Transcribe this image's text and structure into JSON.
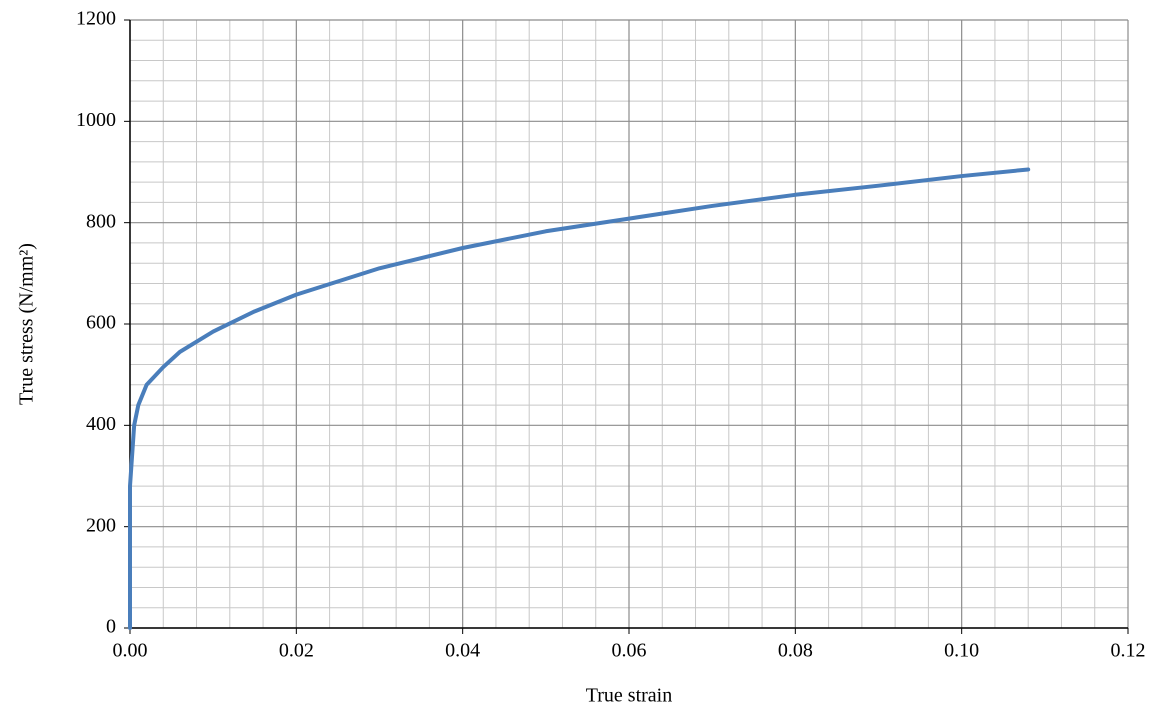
{
  "chart_data": {
    "type": "line",
    "xlabel": "True strain",
    "ylabel": "True stress (N/mm²)",
    "x": [
      0,
      0,
      0.0005,
      0.001,
      0.002,
      0.004,
      0.006,
      0.01,
      0.015,
      0.02,
      0.03,
      0.04,
      0.05,
      0.06,
      0.07,
      0.08,
      0.09,
      0.1,
      0.108
    ],
    "series": [
      {
        "color": "#4a7ebb",
        "values": [
          0,
          280,
          400,
          440,
          480,
          515,
          545,
          585,
          625,
          658,
          710,
          750,
          783,
          808,
          833,
          855,
          873,
          892,
          905
        ]
      }
    ],
    "xlim": [
      0,
      0.12
    ],
    "ylim": [
      0,
      1200
    ],
    "xticks": [
      {
        "value": 0,
        "label": "0.00"
      },
      {
        "value": 0.02,
        "label": "0.02"
      },
      {
        "value": 0.04,
        "label": "0.04"
      },
      {
        "value": 0.06,
        "label": "0.06"
      },
      {
        "value": 0.08,
        "label": "0.08"
      },
      {
        "value": 0.1,
        "label": "0.10"
      },
      {
        "value": 0.12,
        "label": "0.12"
      }
    ],
    "yticks": [
      0,
      200,
      400,
      600,
      800,
      1000,
      1200
    ],
    "xminorticks": [
      0.004,
      0.008,
      0.012,
      0.016,
      0.024,
      0.028,
      0.032,
      0.036,
      0.044,
      0.048,
      0.052,
      0.056,
      0.064,
      0.068,
      0.072,
      0.076,
      0.084,
      0.088,
      0.092,
      0.096,
      0.104,
      0.108,
      0.112,
      0.116
    ],
    "yminorticks": [
      40,
      80,
      120,
      160,
      240,
      280,
      320,
      360,
      440,
      480,
      520,
      560,
      640,
      680,
      720,
      760,
      840,
      880,
      920,
      960,
      1040,
      1080,
      1120,
      1160
    ],
    "grid": true
  }
}
